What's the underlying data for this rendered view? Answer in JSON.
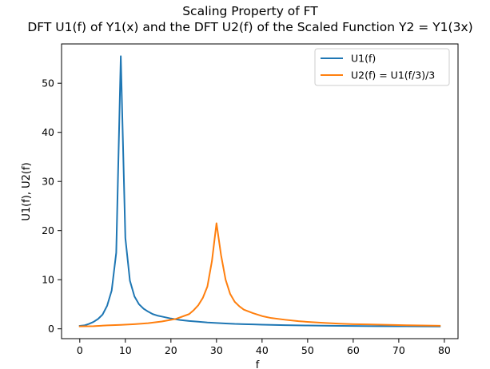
{
  "chart_data": {
    "type": "line",
    "title": "Scaling Property of FT",
    "subtitle": "DFT U1(f) of Y1(x) and the DFT U2(f) of the Scaled Function Y2 = Y1(3x)",
    "xlabel": "f",
    "ylabel": "U1(f),  U2(f)",
    "xlim": [
      -4,
      83
    ],
    "ylim": [
      -2,
      58
    ],
    "xticks": [
      0,
      10,
      20,
      30,
      40,
      50,
      60,
      70,
      80
    ],
    "yticks": [
      0,
      10,
      20,
      30,
      40,
      50
    ],
    "grid": false,
    "legend_position": "top-right",
    "series": [
      {
        "name": "U1(f)",
        "color": "#1f77b4",
        "x": [
          0,
          1,
          2,
          3,
          4,
          5,
          6,
          7,
          8,
          9,
          10,
          11,
          12,
          13,
          14,
          15,
          16,
          17,
          18,
          19,
          20,
          22,
          24,
          26,
          28,
          30,
          32,
          34,
          36,
          38,
          40,
          45,
          50,
          55,
          60,
          65,
          70,
          75,
          79
        ],
        "y": [
          0.6,
          0.7,
          1.0,
          1.4,
          2.0,
          2.9,
          4.7,
          7.8,
          15.5,
          55.5,
          18.5,
          9.8,
          6.6,
          5.0,
          4.1,
          3.5,
          3.0,
          2.7,
          2.5,
          2.3,
          2.1,
          1.8,
          1.6,
          1.45,
          1.3,
          1.2,
          1.1,
          1.0,
          0.95,
          0.9,
          0.85,
          0.75,
          0.68,
          0.62,
          0.58,
          0.55,
          0.52,
          0.5,
          0.48
        ]
      },
      {
        "name": "U2(f) = U1(f/3)/3",
        "color": "#ff7f0e",
        "x": [
          0,
          3,
          6,
          9,
          12,
          15,
          18,
          21,
          24,
          25,
          26,
          27,
          28,
          29,
          30,
          31,
          32,
          33,
          34,
          35,
          36,
          38,
          40,
          42,
          45,
          48,
          51,
          54,
          57,
          60,
          63,
          66,
          69,
          72,
          75,
          79
        ],
        "y": [
          0.5,
          0.55,
          0.7,
          0.8,
          0.95,
          1.15,
          1.5,
          2.0,
          3.0,
          3.8,
          4.8,
          6.3,
          8.6,
          13.8,
          21.5,
          15.0,
          10.0,
          7.1,
          5.5,
          4.6,
          3.9,
          3.2,
          2.6,
          2.2,
          1.85,
          1.55,
          1.35,
          1.2,
          1.05,
          0.95,
          0.9,
          0.85,
          0.78,
          0.72,
          0.68,
          0.62
        ]
      }
    ]
  }
}
